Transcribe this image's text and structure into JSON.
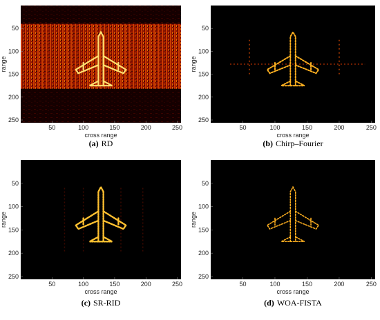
{
  "chart_data": [
    {
      "type": "image",
      "xlabel": "cross range",
      "ylabel": "range",
      "xlim": [
        0,
        256
      ],
      "ylim": [
        0,
        256
      ],
      "y_reversed": true,
      "xticks": [
        50,
        100,
        150,
        200,
        250
      ],
      "yticks": [
        50,
        100,
        150,
        200,
        250
      ],
      "caption_tag": "(a)",
      "caption": "RD"
    },
    {
      "type": "image",
      "xlabel": "cross range",
      "ylabel": "range",
      "xlim": [
        0,
        256
      ],
      "ylim": [
        0,
        256
      ],
      "y_reversed": true,
      "xticks": [
        50,
        100,
        150,
        200,
        250
      ],
      "yticks": [
        50,
        100,
        150,
        200,
        250
      ],
      "caption_tag": "(b)",
      "caption": "Chirp–Fourier"
    },
    {
      "type": "image",
      "xlabel": "cross range",
      "ylabel": "range",
      "xlim": [
        0,
        256
      ],
      "ylim": [
        0,
        256
      ],
      "y_reversed": true,
      "xticks": [
        50,
        100,
        150,
        200,
        250
      ],
      "yticks": [
        50,
        100,
        150,
        200,
        250
      ],
      "caption_tag": "(c)",
      "caption": "SR-RID"
    },
    {
      "type": "image",
      "xlabel": "cross range",
      "ylabel": "range",
      "xlim": [
        0,
        256
      ],
      "ylim": [
        0,
        256
      ],
      "y_reversed": true,
      "xticks": [
        50,
        100,
        150,
        200,
        250
      ],
      "yticks": [
        50,
        100,
        150,
        200,
        250
      ],
      "caption_tag": "(d)",
      "caption": "WOA-FISTA"
    }
  ]
}
